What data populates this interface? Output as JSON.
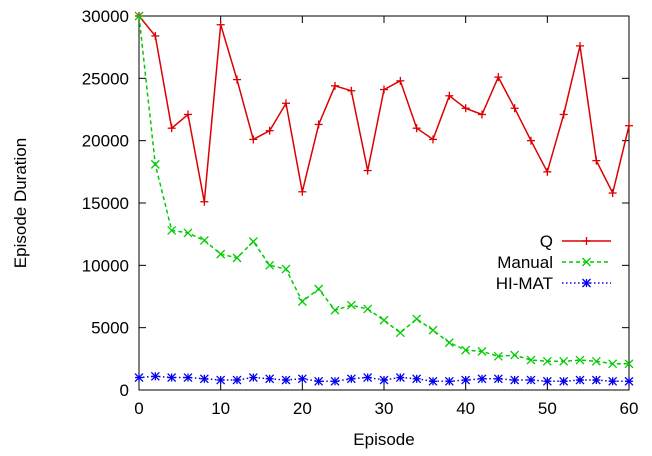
{
  "chart_data": {
    "type": "line",
    "xlabel": "Episode",
    "ylabel": "Episode Duration",
    "xlim": [
      0,
      60
    ],
    "ylim": [
      0,
      30000
    ],
    "xticks": [
      0,
      10,
      20,
      30,
      40,
      50,
      60
    ],
    "yticks": [
      0,
      5000,
      10000,
      15000,
      20000,
      25000,
      30000
    ],
    "grid": false,
    "legend_position": "right-center",
    "series": [
      {
        "name": "Q",
        "color": "#dd0000",
        "line_style": "solid",
        "marker": "plus",
        "x": [
          0,
          2,
          4,
          6,
          8,
          10,
          12,
          14,
          16,
          18,
          20,
          22,
          24,
          26,
          28,
          30,
          32,
          34,
          36,
          38,
          40,
          42,
          44,
          46,
          48,
          50,
          52,
          54,
          56,
          58,
          60
        ],
        "values": [
          30000,
          28400,
          21000,
          22100,
          15100,
          29300,
          24900,
          20100,
          20800,
          23000,
          15900,
          21300,
          24400,
          24000,
          17600,
          24100,
          24800,
          21000,
          20100,
          23600,
          22600,
          22100,
          25100,
          22600,
          20000,
          17500,
          22100,
          27600,
          18400,
          15800,
          21200
        ]
      },
      {
        "name": "Manual",
        "color": "#00cc00",
        "line_style": "dashed",
        "marker": "x",
        "x": [
          0,
          2,
          4,
          6,
          8,
          10,
          12,
          14,
          16,
          18,
          20,
          22,
          24,
          26,
          28,
          30,
          32,
          34,
          36,
          38,
          40,
          42,
          44,
          46,
          48,
          50,
          52,
          54,
          56,
          58,
          60
        ],
        "values": [
          30000,
          18100,
          12800,
          12600,
          12000,
          10900,
          10600,
          11900,
          10000,
          9700,
          7100,
          8100,
          6400,
          6800,
          6500,
          5600,
          4600,
          5700,
          4800,
          3800,
          3200,
          3100,
          2700,
          2800,
          2400,
          2300,
          2300,
          2400,
          2300,
          2100,
          2100
        ]
      },
      {
        "name": "HI-MAT",
        "color": "#0000ee",
        "line_style": "dotted",
        "marker": "star",
        "x": [
          0,
          2,
          4,
          6,
          8,
          10,
          12,
          14,
          16,
          18,
          20,
          22,
          24,
          26,
          28,
          30,
          32,
          34,
          36,
          38,
          40,
          42,
          44,
          46,
          48,
          50,
          52,
          54,
          56,
          58,
          60
        ],
        "values": [
          1000,
          1100,
          1000,
          1000,
          900,
          800,
          800,
          1000,
          900,
          800,
          900,
          700,
          700,
          900,
          1000,
          800,
          1000,
          900,
          700,
          700,
          800,
          900,
          900,
          800,
          800,
          700,
          700,
          800,
          800,
          700,
          700
        ]
      }
    ]
  }
}
